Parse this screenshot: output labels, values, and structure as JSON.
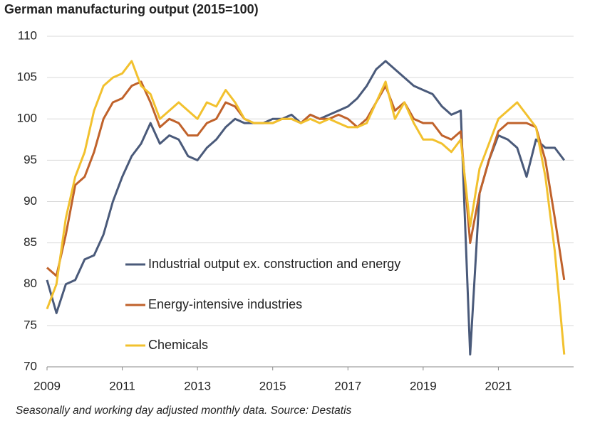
{
  "chart_data": {
    "type": "line",
    "title": "German manufacturing output (2015=100)",
    "footnote": "Seasonally and working day adjusted monthly data. Source: Destatis",
    "x": [
      2009,
      2009.25,
      2009.5,
      2009.75,
      2010,
      2010.25,
      2010.5,
      2010.75,
      2011,
      2011.25,
      2011.5,
      2011.75,
      2012,
      2012.25,
      2012.5,
      2012.75,
      2013,
      2013.25,
      2013.5,
      2013.75,
      2014,
      2014.25,
      2014.5,
      2014.75,
      2015,
      2015.25,
      2015.5,
      2015.75,
      2016,
      2016.25,
      2016.5,
      2016.75,
      2017,
      2017.25,
      2017.5,
      2017.75,
      2018,
      2018.25,
      2018.5,
      2018.75,
      2019,
      2019.25,
      2019.5,
      2019.75,
      2020,
      2020.25,
      2020.5,
      2020.75,
      2021,
      2021.25,
      2021.5,
      2021.75,
      2022,
      2022.25,
      2022.5,
      2022.75
    ],
    "xlim": [
      2009,
      2023
    ],
    "xticks": [
      2009,
      2011,
      2013,
      2015,
      2017,
      2019,
      2021
    ],
    "ylim": [
      70,
      110
    ],
    "yticks": [
      70,
      75,
      80,
      85,
      90,
      95,
      100,
      105,
      110
    ],
    "grid": true,
    "series": [
      {
        "name": "Industrial output ex. construction and energy",
        "color": "#4a5a7a",
        "values": [
          80.5,
          76.5,
          80,
          80.5,
          83,
          83.5,
          86,
          90,
          93,
          95.5,
          97,
          99.5,
          97,
          98,
          97.5,
          95.5,
          95,
          96.5,
          97.5,
          99,
          100,
          99.5,
          99.5,
          99.5,
          100,
          100,
          100.5,
          99.5,
          100.5,
          100,
          100.5,
          101,
          101.5,
          102.5,
          104,
          106,
          107,
          106,
          105,
          104,
          103.5,
          103,
          101.5,
          100.5,
          101,
          71.5,
          91,
          95,
          98,
          97.5,
          96.5,
          93,
          97.5,
          96.5,
          96.5,
          95
        ]
      },
      {
        "name": "Energy-intensive industries",
        "color": "#c0622b",
        "values": [
          82,
          81,
          86,
          92,
          93,
          96,
          100,
          102,
          102.5,
          104,
          104.5,
          102,
          99,
          100,
          99.5,
          98,
          98,
          99.5,
          100,
          102,
          101.5,
          100,
          99.5,
          99.5,
          99.5,
          100,
          100,
          99.5,
          100.5,
          100,
          100,
          100.5,
          100,
          99,
          100,
          102,
          104,
          101,
          102,
          100,
          99.5,
          99.5,
          98,
          97.5,
          98.5,
          85,
          91,
          95,
          98.5,
          99.5,
          99.5,
          99.5,
          99,
          95,
          88,
          80.5
        ]
      },
      {
        "name": "Chemicals",
        "color": "#f2c12e",
        "values": [
          77,
          80,
          88,
          93,
          96,
          101,
          104,
          105,
          105.5,
          107,
          104,
          103,
          100,
          101,
          102,
          101,
          100,
          102,
          101.5,
          103.5,
          102,
          100,
          99.5,
          99.5,
          99.5,
          100,
          100,
          99.5,
          100,
          99.5,
          100,
          99.5,
          99,
          99,
          99.5,
          102,
          104.5,
          100,
          102,
          99.5,
          97.5,
          97.5,
          97,
          96,
          97.5,
          87,
          94,
          97,
          100,
          101,
          102,
          100.5,
          99,
          93,
          84,
          71.5
        ]
      }
    ]
  }
}
